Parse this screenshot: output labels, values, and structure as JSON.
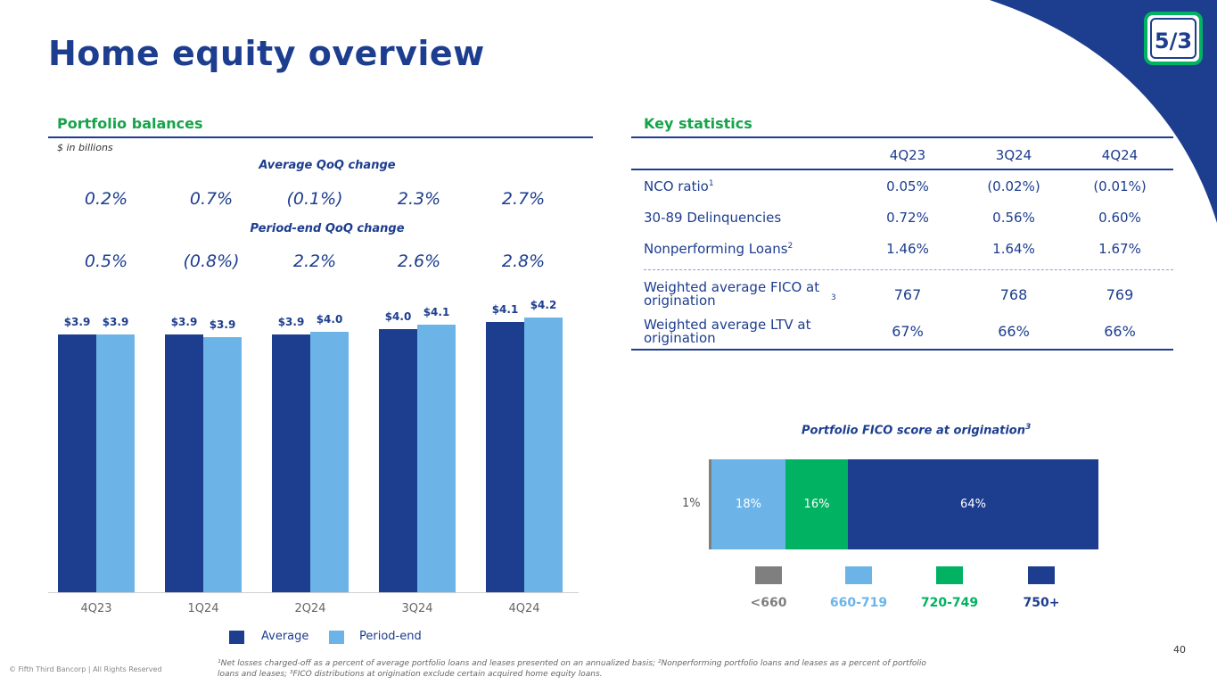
{
  "title": "Home equity overview",
  "colors": {
    "dark_blue": "#1d3d8f",
    "light_blue": "#6cb4e8",
    "green": "#00b261",
    "gray": "#7f7f7f"
  },
  "left": {
    "heading": "Portfolio balances",
    "units": "$ in billions",
    "avg_qoq_title": "Average QoQ change",
    "avg_qoq": [
      "0.2%",
      "0.7%",
      "(0.1%)",
      "2.3%",
      "2.7%"
    ],
    "pe_qoq_title": "Period-end QoQ change",
    "pe_qoq": [
      "0.5%",
      "(0.8%)",
      "2.2%",
      "2.6%",
      "2.8%"
    ]
  },
  "chart_data": [
    {
      "type": "bar",
      "categories": [
        "4Q23",
        "1Q24",
        "2Q24",
        "3Q24",
        "4Q24"
      ],
      "series": [
        {
          "name": "Average",
          "values": [
            3.9,
            3.9,
            3.9,
            4.0,
            4.1
          ],
          "labels": [
            "$3.9",
            "$3.9",
            "$3.9",
            "$4.0",
            "$4.1"
          ]
        },
        {
          "name": "Period-end",
          "values": [
            3.9,
            3.9,
            4.0,
            4.1,
            4.2
          ],
          "labels": [
            "$3.9",
            "$3.9",
            "$4.0",
            "$4.1",
            "$4.2"
          ]
        }
      ],
      "bar_heights_rel": {
        "Average": [
          3.89,
          3.9,
          3.89,
          3.98,
          4.09
        ],
        "Period-end": [
          3.89,
          3.86,
          3.94,
          4.04,
          4.15
        ]
      }
    },
    {
      "type": "bar",
      "title": "Portfolio FICO score at origination",
      "title_sup": "3",
      "stacked": true,
      "categories": [
        "<660",
        "660-719",
        "720-749",
        "750+"
      ],
      "values": [
        1,
        18,
        16,
        64
      ],
      "labels": [
        "1%",
        "18%",
        "16%",
        "64%"
      ]
    }
  ],
  "right": {
    "heading": "Key statistics",
    "columns": [
      "4Q23",
      "3Q24",
      "4Q24"
    ],
    "rows": [
      {
        "label": "NCO ratio",
        "sup": "1",
        "values": [
          "0.05%",
          "(0.02%)",
          "(0.01%)"
        ]
      },
      {
        "label": "30-89 Delinquencies",
        "sup": "",
        "values": [
          "0.72%",
          "0.56%",
          "0.60%"
        ]
      },
      {
        "label": "Nonperforming Loans",
        "sup": "2",
        "values": [
          "1.46%",
          "1.64%",
          "1.67%"
        ]
      },
      {
        "label": "Weighted average FICO at origination",
        "sup": "3",
        "values": [
          "767",
          "768",
          "769"
        ]
      },
      {
        "label": "Weighted average LTV at origination",
        "sup": "",
        "values": [
          "67%",
          "66%",
          "66%"
        ]
      }
    ]
  },
  "legend": {
    "average": "Average",
    "period_end": "Period-end"
  },
  "footnote": "¹Net losses charged-off as a percent of average portfolio loans and leases presented on an annualized basis; ²Nonperforming portfolio loans and leases as a percent of portfolio loans and leases; ³FICO distributions at origination exclude certain acquired home equity loans.",
  "copyright": "© Fifth Third Bancorp | All Rights Reserved",
  "page_number": "40",
  "logo_text": "5/3"
}
